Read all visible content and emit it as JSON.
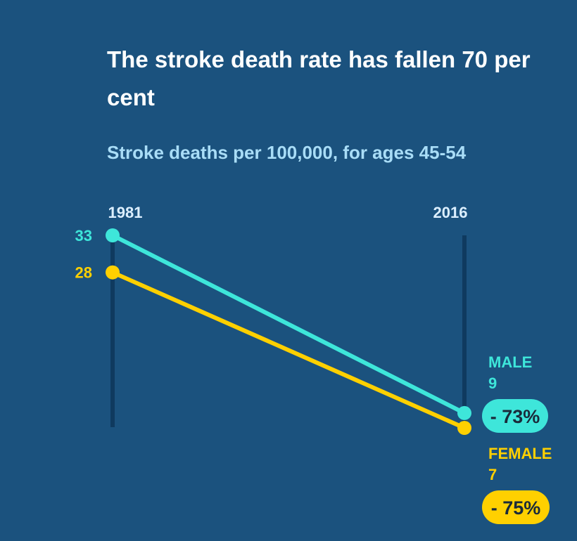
{
  "title": "The stroke death rate has fallen 70 per cent",
  "subtitle": "Stroke deaths per 100,000, for ages 45-54",
  "colors": {
    "background": "#1b527e",
    "axis": "#0f3a5f",
    "male": "#3ee6da",
    "female": "#ffd000",
    "pill_text": "#1a2a3a"
  },
  "chart_data": {
    "type": "line",
    "x": [
      "1981",
      "2016"
    ],
    "series": [
      {
        "name": "MALE",
        "values": [
          33,
          9
        ],
        "start_label": "33",
        "end_label": "9",
        "change": "- 73%",
        "color": "#3ee6da"
      },
      {
        "name": "FEMALE",
        "values": [
          28,
          7
        ],
        "start_label": "28",
        "end_label": "7",
        "change": "- 75%",
        "color": "#ffd000"
      }
    ],
    "ylim": [
      7,
      33
    ]
  }
}
